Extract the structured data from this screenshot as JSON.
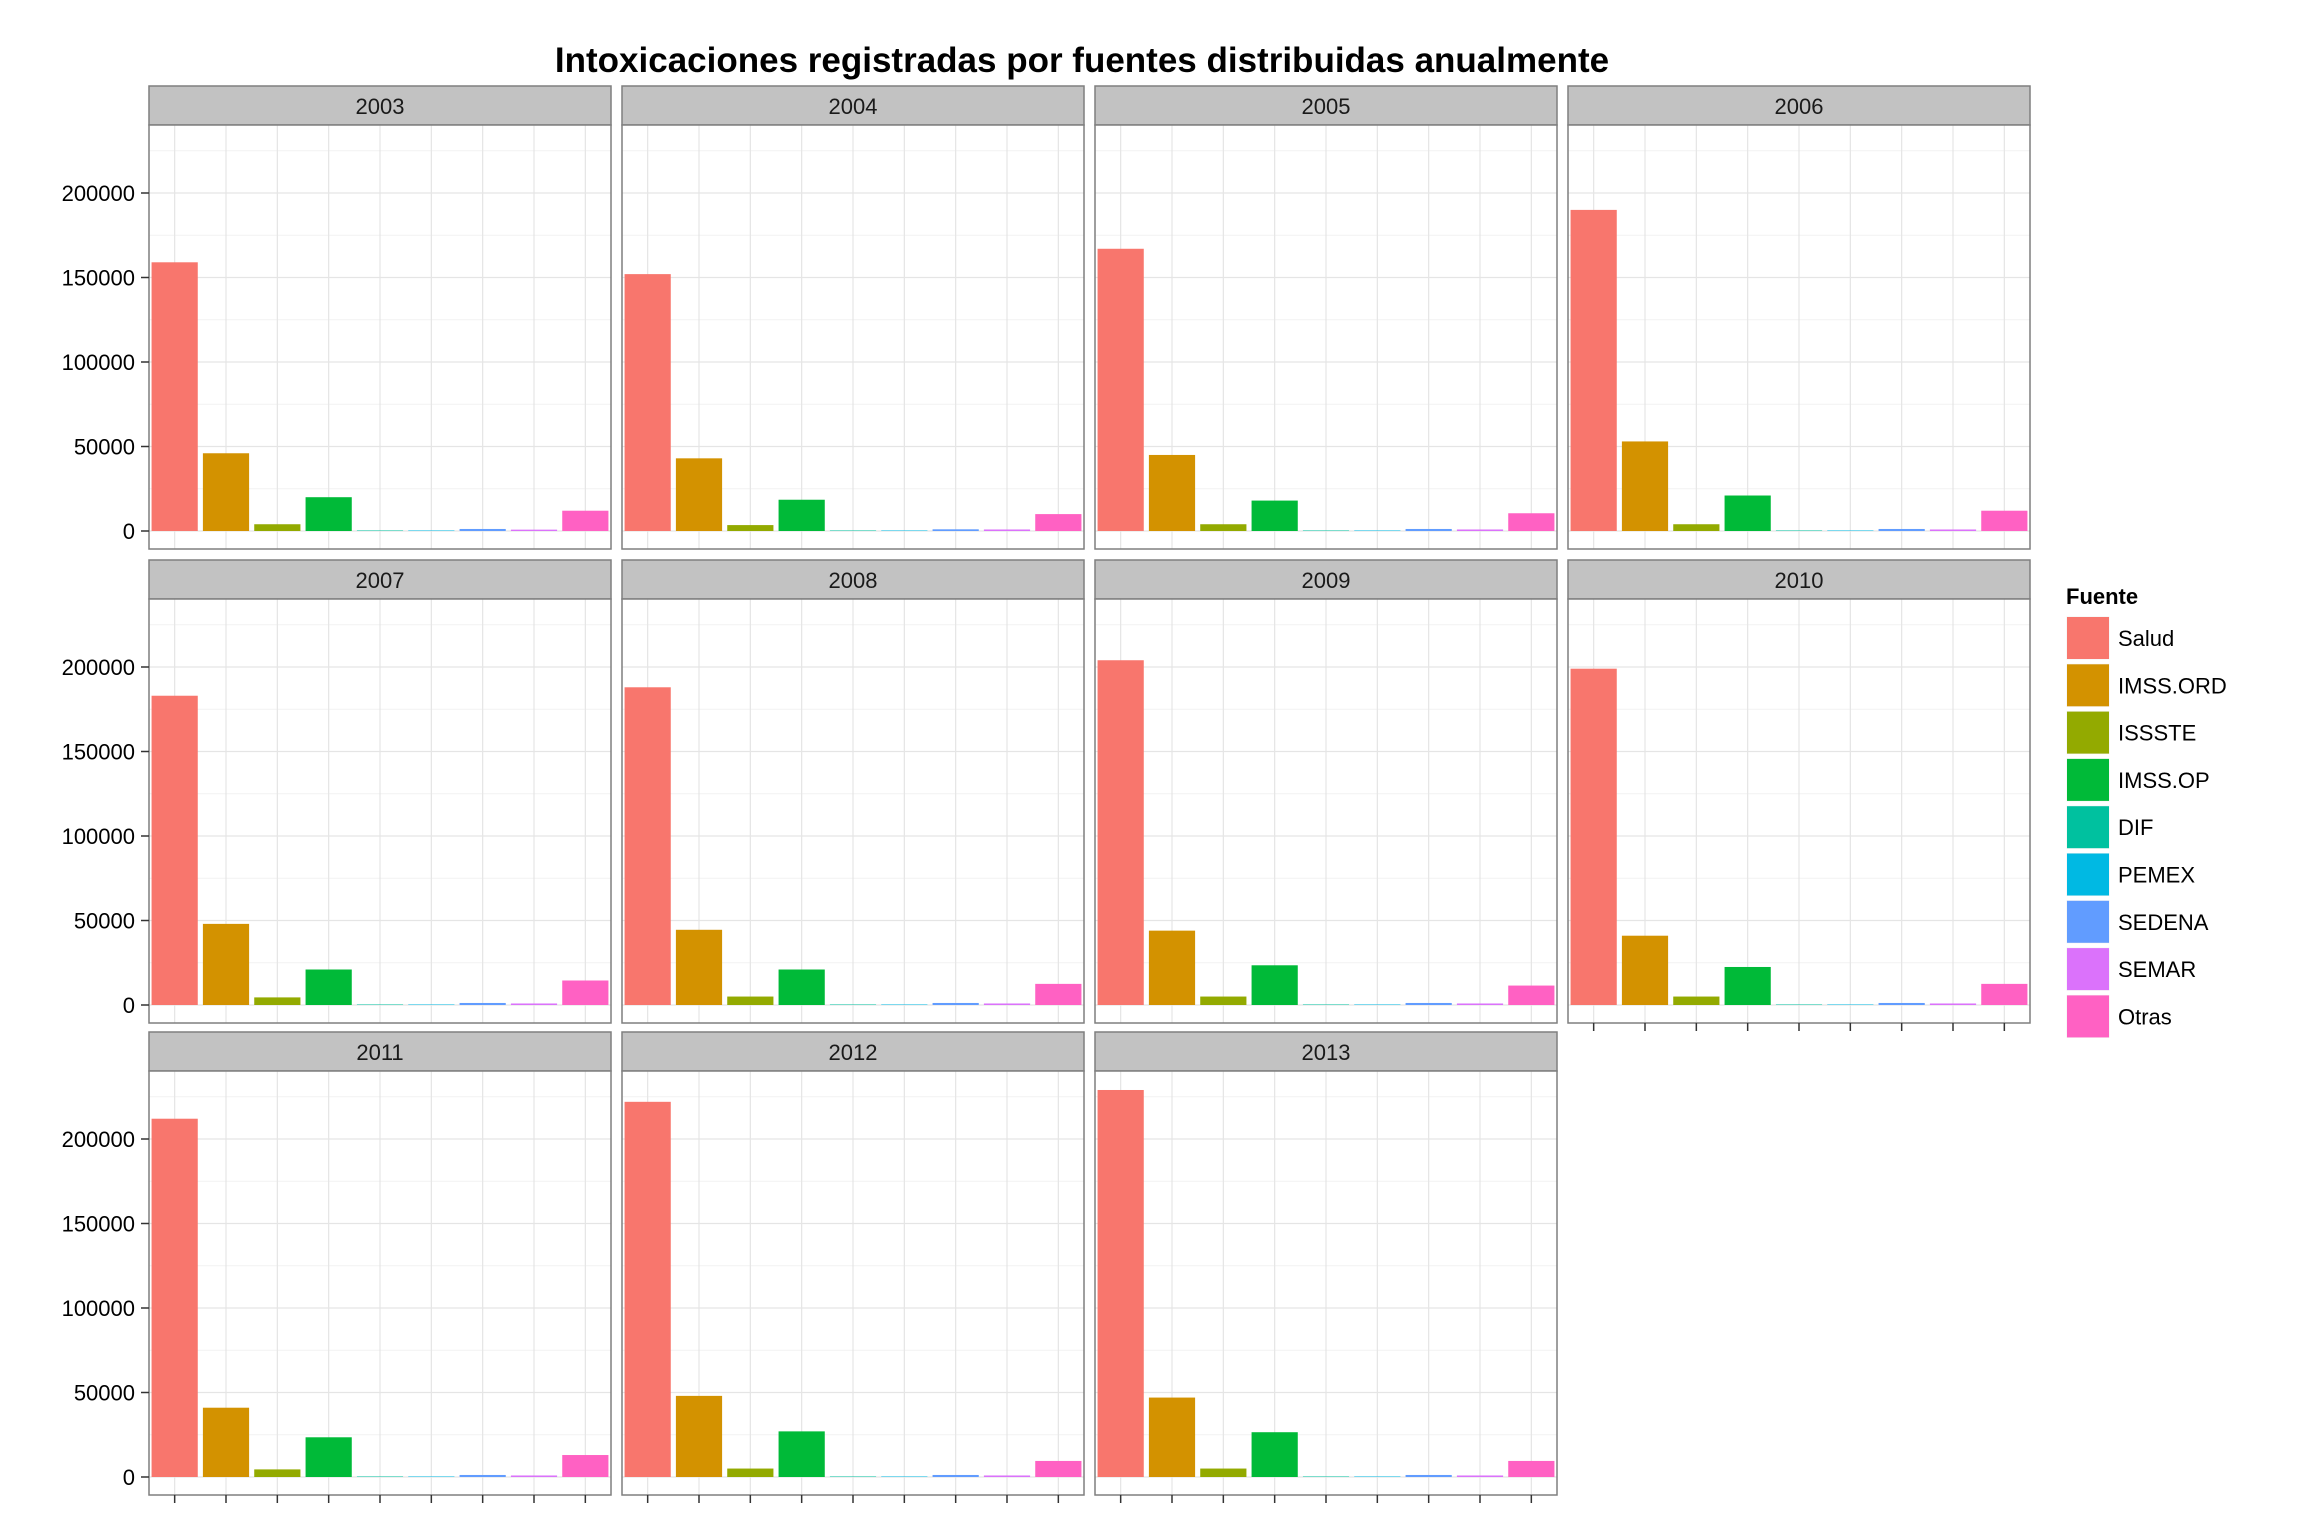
{
  "chart_data": {
    "type": "bar",
    "title": "Intoxicaciones registradas por fuentes distribuidas anualmente",
    "xlabel": "",
    "ylabel": "",
    "ylim": [
      0,
      240000
    ],
    "y_ticks": [
      0,
      50000,
      100000,
      150000,
      200000
    ],
    "y_tick_labels": [
      "0",
      "50000",
      "100000",
      "150000",
      "200000"
    ],
    "grid": true,
    "x_tick_labels_shown": false,
    "legend": {
      "title": "Fuente",
      "placement": "right"
    },
    "categories": [
      "Salud",
      "IMSS.ORD",
      "ISSSTE",
      "IMSS.OP",
      "DIF",
      "PEMEX",
      "SEDENA",
      "SEMAR",
      "Otras"
    ],
    "colors": [
      "#F8766D",
      "#D39200",
      "#93AA00",
      "#00BA38",
      "#00C19F",
      "#00B9E3",
      "#619CFF",
      "#DB72FB",
      "#FF61C3"
    ],
    "panels": [
      {
        "label": "2003",
        "values": [
          159000,
          46000,
          4000,
          20000,
          100,
          100,
          1200,
          800,
          12000
        ]
      },
      {
        "label": "2004",
        "values": [
          152000,
          43000,
          3500,
          18500,
          100,
          100,
          1000,
          900,
          10000
        ]
      },
      {
        "label": "2005",
        "values": [
          167000,
          45000,
          4000,
          18000,
          100,
          100,
          1200,
          900,
          10500
        ]
      },
      {
        "label": "2006",
        "values": [
          190000,
          53000,
          4000,
          21000,
          100,
          100,
          1200,
          900,
          12000
        ]
      },
      {
        "label": "2007",
        "values": [
          183000,
          48000,
          4500,
          21000,
          100,
          100,
          1200,
          900,
          14500
        ]
      },
      {
        "label": "2008",
        "values": [
          188000,
          44500,
          5000,
          21000,
          100,
          100,
          1200,
          900,
          12500
        ]
      },
      {
        "label": "2009",
        "values": [
          204000,
          44000,
          5000,
          23500,
          100,
          100,
          1200,
          900,
          11500
        ]
      },
      {
        "label": "2010",
        "values": [
          199000,
          41000,
          5000,
          22500,
          100,
          100,
          1200,
          900,
          12500
        ]
      },
      {
        "label": "2011",
        "values": [
          212000,
          41000,
          4500,
          23500,
          100,
          100,
          1200,
          900,
          13000
        ]
      },
      {
        "label": "2012",
        "values": [
          222000,
          48000,
          5000,
          27000,
          100,
          100,
          1200,
          900,
          9500
        ]
      },
      {
        "label": "2013",
        "values": [
          229000,
          47000,
          5000,
          26500,
          100,
          100,
          1200,
          900,
          9500
        ]
      }
    ]
  }
}
